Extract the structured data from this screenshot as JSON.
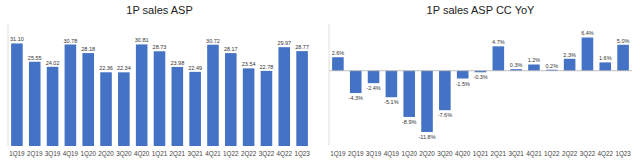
{
  "chart_data": [
    {
      "type": "bar",
      "title": "1P sales ASP",
      "categories": [
        "1Q19",
        "2Q19",
        "3Q19",
        "4Q19",
        "1Q20",
        "2Q20",
        "3Q20",
        "4Q20",
        "1Q21",
        "2Q21",
        "3Q21",
        "4Q21",
        "1Q22",
        "2Q22",
        "3Q22",
        "4Q22",
        "1Q23"
      ],
      "values": [
        31.1,
        25.55,
        24.02,
        30.78,
        28.18,
        22.36,
        22.34,
        30.81,
        28.73,
        23.98,
        22.49,
        30.72,
        28.17,
        23.54,
        22.78,
        29.97,
        28.77
      ],
      "value_labels": [
        "31.10",
        "25.55",
        "24.02",
        "30.78",
        "28.18",
        "22.36",
        "22.34",
        "30.81",
        "28.73",
        "23.98",
        "22.49",
        "30.72",
        "28.17",
        "23.54",
        "22.78",
        "29.97",
        "28.77"
      ],
      "color": "#4472c4",
      "ylim": [
        0,
        37
      ],
      "data_labels": true,
      "tick_labels": "x",
      "grid": false
    },
    {
      "type": "bar",
      "title": "1P sales ASP CC YoY",
      "categories": [
        "1Q19",
        "2Q19",
        "3Q19",
        "4Q19",
        "1Q20",
        "2Q20",
        "3Q20",
        "4Q20",
        "1Q21",
        "2Q21",
        "3Q21",
        "4Q21",
        "1Q22",
        "2Q22",
        "3Q22",
        "4Q22",
        "1Q23"
      ],
      "values": [
        2.6,
        -4.3,
        -2.4,
        -5.1,
        -8.9,
        -11.8,
        -7.6,
        -1.5,
        -0.3,
        4.7,
        0.3,
        1.2,
        0.2,
        2.3,
        6.4,
        1.6,
        5.0
      ],
      "value_labels": [
        "2.6%",
        "-4.3%",
        "-2.4%",
        "-5.1%",
        "-8.9%",
        "-11.8%",
        "-7.6%",
        "-1.5%",
        "-0.3%",
        "4.7%",
        "0.3%",
        "1.2%",
        "0.2%",
        "2.3%",
        "6.4%",
        "1.6%",
        "5.0%"
      ],
      "color": "#4472c4",
      "ylim": [
        -14.5,
        9.0
      ],
      "data_labels": true,
      "tick_labels": "x",
      "grid": false
    }
  ]
}
